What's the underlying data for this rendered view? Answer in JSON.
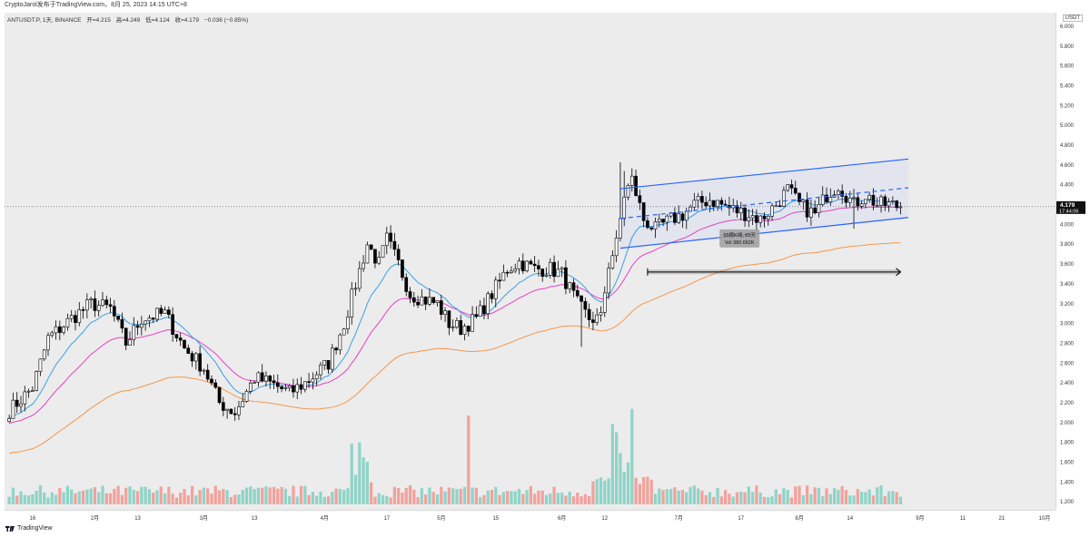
{
  "caption": "CryptoJarol发布于TradingView.com，8月 25, 2023 14:15 UTC+8",
  "header": {
    "symbol": "ANTUSDT.P, 1天, BINANCE",
    "open": "开=4.215",
    "high": "高=4.249",
    "low": "低=4.124",
    "close": "收=4.179",
    "change": "−0.036 (−0.85%)"
  },
  "currency_badge": "USDT",
  "last_price": "4.179",
  "countdown": "17:44:06",
  "measure_tooltip": {
    "line1": "65根K线, 65天",
    "line2": "Vol 380.662K"
  },
  "brand": "TradingView",
  "colors": {
    "up": "#ffffff",
    "down": "#000000",
    "vol_up": "#8fd4c8",
    "vol_down": "#f2a29c",
    "ema_fast": "#3aa0e8",
    "ema_mid": "#ea3fc4",
    "ema_slow": "#f5964a",
    "channel": "#2962ff"
  },
  "chart_data": {
    "type": "candlestick",
    "xlabel": "",
    "ylabel": "",
    "ylim": [
      1.14,
      6.1
    ],
    "price_ticks": [
      "6.000",
      "5.800",
      "5.600",
      "5.400",
      "5.200",
      "5.000",
      "4.800",
      "4.600",
      "4.400",
      "4.200",
      "4.000",
      "3.800",
      "3.600",
      "3.400",
      "3.200",
      "3.000",
      "2.800",
      "2.600",
      "2.400",
      "2.200",
      "2.000",
      "1.800",
      "1.600",
      "1.400",
      "1.200"
    ],
    "time_ticks": [
      {
        "day": 6,
        "label": "16"
      },
      {
        "day": 22,
        "label": "2月"
      },
      {
        "day": 33,
        "label": "13"
      },
      {
        "day": 50,
        "label": "3月"
      },
      {
        "day": 63,
        "label": "13"
      },
      {
        "day": 81,
        "label": "4月"
      },
      {
        "day": 97,
        "label": "17"
      },
      {
        "day": 111,
        "label": "5月"
      },
      {
        "day": 125,
        "label": "15"
      },
      {
        "day": 142,
        "label": "6月"
      },
      {
        "day": 153,
        "label": "12"
      },
      {
        "day": 172,
        "label": "7月"
      },
      {
        "day": 188,
        "label": "17"
      },
      {
        "day": 203,
        "label": "8月"
      },
      {
        "day": 216,
        "label": "14"
      },
      {
        "day": 234,
        "label": "9月"
      },
      {
        "day": 245,
        "label": "11"
      },
      {
        "day": 255,
        "label": "21"
      },
      {
        "day": 266,
        "label": "10月"
      }
    ],
    "x_days": 270,
    "volume_scale_max": 1,
    "keypoints": [
      [
        0,
        2.12
      ],
      [
        6,
        2.35
      ],
      [
        10,
        2.85
      ],
      [
        16,
        3.05
      ],
      [
        21,
        3.2
      ],
      [
        26,
        3.15
      ],
      [
        30,
        2.8
      ],
      [
        34,
        3.05
      ],
      [
        40,
        3.1
      ],
      [
        45,
        2.75
      ],
      [
        50,
        2.55
      ],
      [
        54,
        2.2
      ],
      [
        58,
        2.1
      ],
      [
        63,
        2.45
      ],
      [
        67,
        2.4
      ],
      [
        72,
        2.3
      ],
      [
        76,
        2.4
      ],
      [
        82,
        2.6
      ],
      [
        86,
        3.0
      ],
      [
        89,
        3.4
      ],
      [
        92,
        3.8
      ],
      [
        95,
        3.6
      ],
      [
        97,
        3.85
      ],
      [
        100,
        3.6
      ],
      [
        103,
        3.3
      ],
      [
        106,
        3.25
      ],
      [
        110,
        3.2
      ],
      [
        113,
        3.0
      ],
      [
        116,
        2.95
      ],
      [
        120,
        3.05
      ],
      [
        124,
        3.3
      ],
      [
        128,
        3.55
      ],
      [
        131,
        3.62
      ],
      [
        135,
        3.55
      ],
      [
        139,
        3.55
      ],
      [
        142,
        3.5
      ],
      [
        146,
        3.2
      ],
      [
        149,
        3.05
      ],
      [
        152,
        3.05
      ],
      [
        154,
        3.6
      ],
      [
        156,
        3.8
      ],
      [
        158,
        4.3
      ],
      [
        160,
        4.45
      ],
      [
        163,
        4.05
      ],
      [
        166,
        3.95
      ],
      [
        170,
        4.05
      ],
      [
        173,
        4.1
      ],
      [
        176,
        4.2
      ],
      [
        180,
        4.25
      ],
      [
        183,
        4.2
      ],
      [
        186,
        4.15
      ],
      [
        190,
        4.1
      ],
      [
        193,
        4.05
      ],
      [
        197,
        4.2
      ],
      [
        200,
        4.35
      ],
      [
        203,
        4.2
      ],
      [
        207,
        4.1
      ],
      [
        210,
        4.3
      ],
      [
        213,
        4.4
      ],
      [
        217,
        4.2
      ],
      [
        220,
        4.3
      ],
      [
        223,
        4.2
      ],
      [
        226,
        4.2
      ],
      [
        229,
        4.18
      ]
    ],
    "channel": {
      "upper": [
        [
          157,
          4.36
        ],
        [
          231,
          4.66
        ]
      ],
      "lower": [
        [
          157,
          3.76
        ],
        [
          231,
          4.07
        ]
      ],
      "mid": [
        [
          157,
          4.06
        ],
        [
          231,
          4.37
        ]
      ]
    },
    "measure": {
      "from_day": 164,
      "to_day": 229,
      "price": 3.52,
      "bars": 65
    },
    "ema_slow_end": 3.84
  }
}
